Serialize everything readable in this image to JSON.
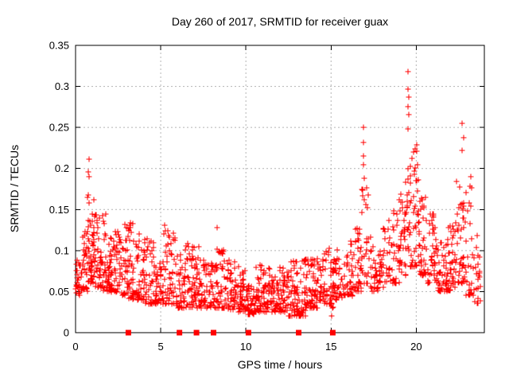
{
  "chart_data": {
    "type": "scatter",
    "title": "Day 260 of 2017, SRMTID for receiver guax",
    "xlabel": "GPS time / hours",
    "ylabel": "SRMTID / TECUs",
    "xlim": [
      0,
      24
    ],
    "ylim": [
      0,
      0.35
    ],
    "xticks": [
      0,
      5,
      10,
      15,
      20
    ],
    "yticks": [
      0,
      0.05,
      0.1,
      0.15,
      0.2,
      0.25,
      0.3,
      0.35
    ],
    "grid": true,
    "legend": "none",
    "colors": {
      "marker": "#ff0000",
      "grid": "#b4b4b4",
      "axis": "#000000",
      "background": "#ffffff"
    },
    "series": [
      {
        "name": "srmtid-points",
        "marker": "plus",
        "color": "#ff0000",
        "density_bins": [
          [
            0.0,
            0.35,
            0.045,
            0.1,
            30,
            1.6
          ],
          [
            0.35,
            0.7,
            0.05,
            0.132,
            30,
            1.7
          ],
          [
            0.7,
            1.1,
            0.06,
            0.168,
            48,
            1.5
          ],
          [
            1.1,
            1.6,
            0.055,
            0.15,
            45,
            1.8
          ],
          [
            1.6,
            2.1,
            0.05,
            0.148,
            45,
            1.8
          ],
          [
            2.1,
            2.6,
            0.048,
            0.125,
            42,
            1.8
          ],
          [
            2.6,
            3.1,
            0.045,
            0.13,
            42,
            1.8
          ],
          [
            3.1,
            3.6,
            0.04,
            0.135,
            42,
            1.8
          ],
          [
            3.6,
            4.1,
            0.04,
            0.12,
            40,
            1.8
          ],
          [
            4.1,
            4.6,
            0.035,
            0.115,
            40,
            2.0
          ],
          [
            4.6,
            5.1,
            0.035,
            0.09,
            40,
            1.8
          ],
          [
            5.1,
            5.45,
            0.035,
            0.13,
            26,
            1.6
          ],
          [
            5.45,
            5.9,
            0.035,
            0.122,
            30,
            1.8
          ],
          [
            5.9,
            6.4,
            0.03,
            0.095,
            40,
            1.8
          ],
          [
            6.4,
            6.9,
            0.03,
            0.115,
            40,
            2.0
          ],
          [
            6.9,
            7.4,
            0.03,
            0.105,
            42,
            2.0
          ],
          [
            7.4,
            8.1,
            0.03,
            0.09,
            52,
            1.8
          ],
          [
            8.1,
            8.7,
            0.03,
            0.103,
            45,
            2.0
          ],
          [
            8.7,
            9.4,
            0.028,
            0.088,
            50,
            1.8
          ],
          [
            9.4,
            10.0,
            0.025,
            0.082,
            48,
            1.8
          ],
          [
            10.0,
            10.5,
            0.022,
            0.078,
            40,
            1.7
          ],
          [
            10.5,
            11.0,
            0.025,
            0.085,
            42,
            1.8
          ],
          [
            11.0,
            11.5,
            0.025,
            0.08,
            42,
            1.8
          ],
          [
            11.5,
            12.0,
            0.025,
            0.075,
            42,
            1.7
          ],
          [
            12.0,
            12.5,
            0.025,
            0.08,
            42,
            1.7
          ],
          [
            12.5,
            13.0,
            0.02,
            0.09,
            42,
            1.7
          ],
          [
            13.0,
            13.5,
            0.02,
            0.1,
            42,
            1.8
          ],
          [
            13.5,
            14.0,
            0.03,
            0.092,
            42,
            1.8
          ],
          [
            14.0,
            14.5,
            0.03,
            0.095,
            40,
            1.8
          ],
          [
            14.5,
            15.0,
            0.035,
            0.105,
            40,
            1.8
          ],
          [
            15.0,
            15.25,
            0.02,
            0.1,
            22,
            1.4
          ],
          [
            15.25,
            15.8,
            0.04,
            0.105,
            35,
            1.8
          ],
          [
            15.8,
            16.3,
            0.045,
            0.115,
            35,
            1.8
          ],
          [
            16.3,
            16.8,
            0.05,
            0.13,
            35,
            1.8
          ],
          [
            16.8,
            17.25,
            0.06,
            0.2,
            30,
            1.5
          ],
          [
            17.25,
            17.8,
            0.05,
            0.12,
            32,
            1.8
          ],
          [
            17.8,
            18.4,
            0.055,
            0.135,
            36,
            1.8
          ],
          [
            18.4,
            19.0,
            0.06,
            0.15,
            36,
            1.8
          ],
          [
            19.0,
            19.45,
            0.07,
            0.19,
            34,
            1.7
          ],
          [
            19.45,
            19.65,
            0.1,
            0.23,
            20,
            1.3
          ],
          [
            19.65,
            20.15,
            0.08,
            0.23,
            42,
            1.9
          ],
          [
            20.15,
            20.65,
            0.07,
            0.17,
            40,
            1.8
          ],
          [
            20.65,
            21.2,
            0.06,
            0.145,
            42,
            1.8
          ],
          [
            21.2,
            21.8,
            0.05,
            0.12,
            45,
            1.8
          ],
          [
            21.8,
            22.3,
            0.05,
            0.13,
            45,
            1.8
          ],
          [
            22.3,
            22.85,
            0.06,
            0.21,
            40,
            1.6
          ],
          [
            22.85,
            23.3,
            0.045,
            0.19,
            30,
            1.7
          ],
          [
            23.3,
            23.78,
            0.035,
            0.12,
            24,
            1.7
          ]
        ],
        "outliers": [
          [
            0.78,
            0.211
          ],
          [
            0.77,
            0.196
          ],
          [
            0.8,
            0.19
          ],
          [
            0.74,
            0.168
          ],
          [
            0.72,
            0.165
          ],
          [
            2.9,
            0.132
          ],
          [
            3.2,
            0.134
          ],
          [
            5.25,
            0.131
          ],
          [
            8.32,
            0.128
          ],
          [
            16.88,
            0.25
          ],
          [
            16.9,
            0.232
          ],
          [
            16.92,
            0.215
          ],
          [
            16.89,
            0.205
          ],
          [
            19.54,
            0.318
          ],
          [
            19.53,
            0.297
          ],
          [
            19.56,
            0.287
          ],
          [
            19.52,
            0.275
          ],
          [
            19.55,
            0.266
          ],
          [
            19.54,
            0.248
          ],
          [
            22.71,
            0.255
          ],
          [
            22.77,
            0.238
          ],
          [
            22.68,
            0.222
          ]
        ]
      },
      {
        "name": "zero-flag-points",
        "marker": "filled-square",
        "color": "#ff0000",
        "y": 0,
        "points_x": [
          3.1,
          6.1,
          7.1,
          8.1,
          10.15,
          13.1,
          15.1
        ]
      }
    ]
  }
}
